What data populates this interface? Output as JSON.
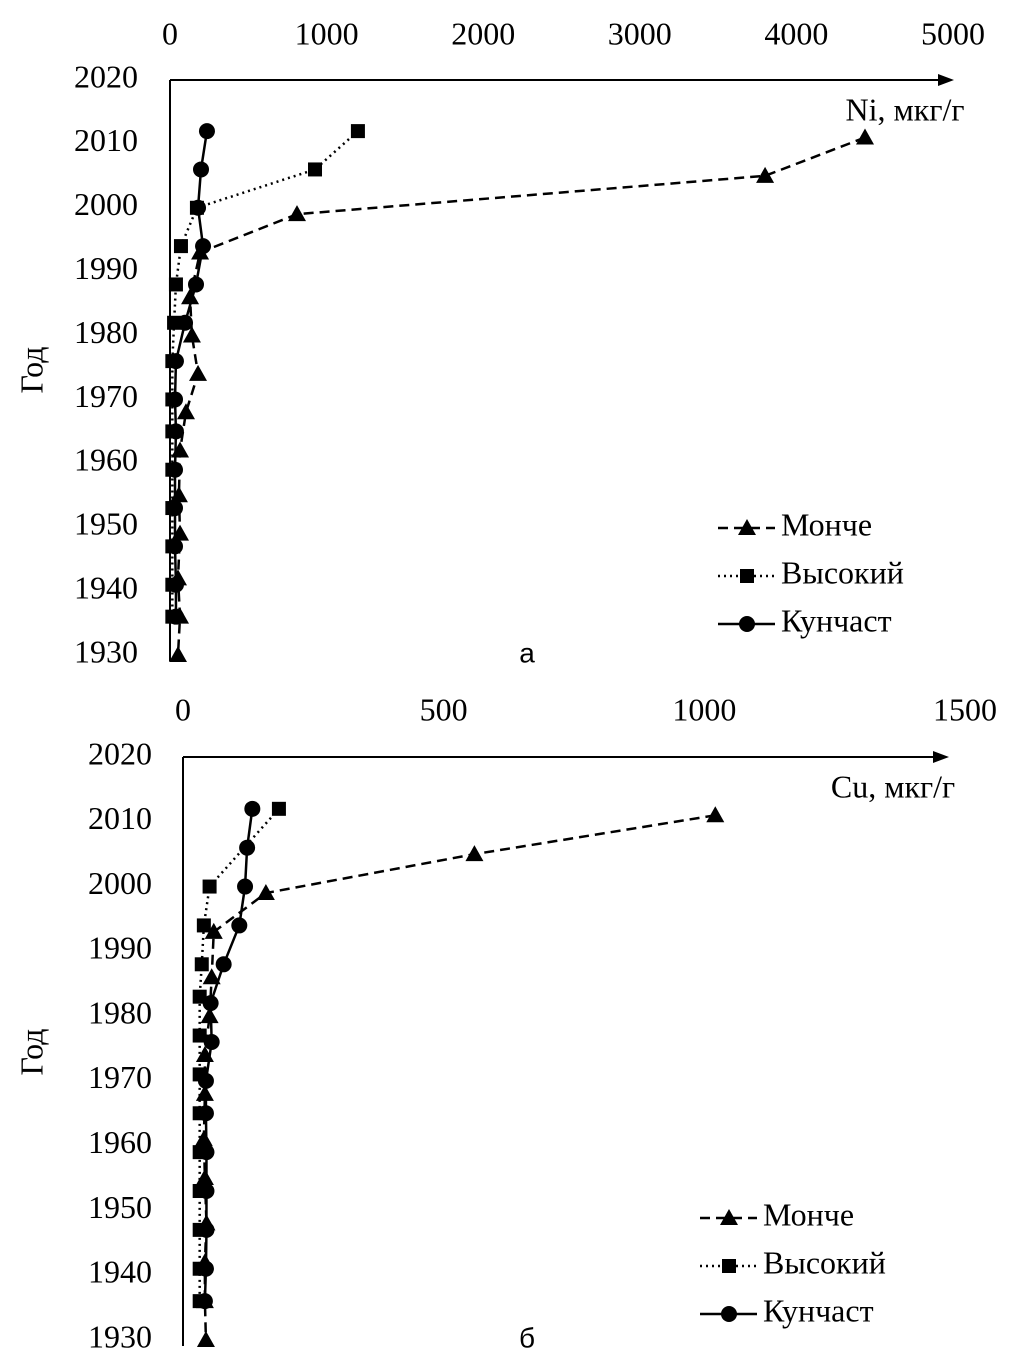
{
  "chart_data": [
    {
      "type": "line",
      "annotation": "а",
      "x_label": "Ni, мкг/г",
      "y_label": "Год",
      "xlim": [
        0,
        5000
      ],
      "xticks": [
        0,
        1000,
        2000,
        3000,
        4000,
        5000
      ],
      "ylim": [
        1930,
        2020
      ],
      "yticks": [
        1930,
        1940,
        1950,
        1960,
        1970,
        1980,
        1990,
        2000,
        2010,
        2020
      ],
      "legend": "lower right",
      "series": [
        {
          "name": "Монче",
          "color": "#000000",
          "marker": "triangle",
          "dash": "dashed",
          "x": [
            4438,
            3800,
            811,
            192,
            128,
            140,
            179,
            102,
            64,
            57,
            64,
            51,
            64,
            51
          ],
          "y": [
            2011,
            2005,
            1999,
            1993,
            1986,
            1980,
            1974,
            1968,
            1962,
            1955,
            1949,
            1942,
            1936,
            1930
          ]
        },
        {
          "name": "Высокий",
          "color": "#000000",
          "marker": "square",
          "dash": "dotted",
          "x": [
            1200,
            926,
            172,
            70,
            38,
            26,
            15,
            15,
            15,
            15,
            15,
            15,
            15,
            15
          ],
          "y": [
            2012,
            2006,
            2000,
            1994,
            1988,
            1982,
            1976,
            1970,
            1965,
            1959,
            1953,
            1947,
            1941,
            1936
          ]
        },
        {
          "name": "Кунчаст",
          "color": "#000000",
          "marker": "circle",
          "dash": "solid",
          "x": [
            236,
            198,
            179,
            211,
            166,
            96,
            38,
            32,
            38,
            32,
            32,
            32,
            38,
            38
          ],
          "y": [
            2012,
            2006,
            2000,
            1994,
            1988,
            1982,
            1976,
            1970,
            1965,
            1959,
            1953,
            1947,
            1941,
            1936
          ]
        }
      ]
    },
    {
      "type": "line",
      "annotation": "б",
      "x_label": "Cu, мкг/г",
      "y_label": "Год",
      "xlim": [
        0,
        1500
      ],
      "xticks": [
        0,
        500,
        1000,
        1500
      ],
      "ylim": [
        1930,
        2020
      ],
      "yticks": [
        1930,
        1940,
        1950,
        1960,
        1970,
        1980,
        1990,
        2000,
        2010,
        2020
      ],
      "legend": "lower right",
      "series": [
        {
          "name": "Монче",
          "color": "#000000",
          "marker": "triangle",
          "dash": "dashed",
          "x": [
            1021,
            559,
            159,
            59,
            55,
            51,
            42,
            42,
            40,
            42,
            45,
            42,
            42,
            44
          ],
          "y": [
            2011,
            2005,
            1999,
            1993,
            1986,
            1980,
            1974,
            1968,
            1961,
            1955,
            1948,
            1942,
            1936,
            1930
          ]
        },
        {
          "name": "Высокий",
          "color": "#000000",
          "marker": "square",
          "dash": "dotted",
          "x": [
            184,
            51,
            40,
            36,
            32,
            32,
            32,
            32,
            32,
            32,
            32,
            32,
            32
          ],
          "y": [
            2012,
            2000,
            1994,
            1988,
            1983,
            1977,
            1971,
            1965,
            1959,
            1953,
            1947,
            1941,
            1936
          ]
        },
        {
          "name": "Кунчаст",
          "color": "#000000",
          "marker": "circle",
          "dash": "solid",
          "x": [
            133,
            123,
            119,
            108,
            78,
            53,
            55,
            44,
            44,
            45,
            45,
            45,
            44,
            42
          ],
          "y": [
            2012,
            2006,
            2000,
            1994,
            1988,
            1982,
            1976,
            1970,
            1965,
            1959,
            1953,
            1947,
            1941,
            1936
          ]
        }
      ]
    }
  ]
}
